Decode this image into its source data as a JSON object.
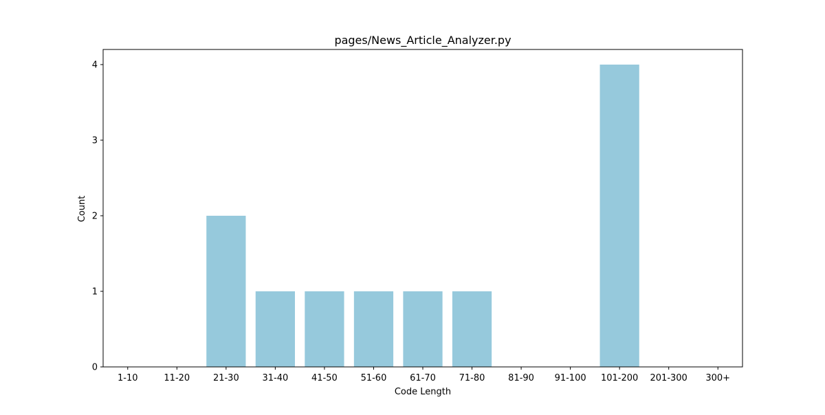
{
  "chart_data": {
    "type": "bar",
    "title": "pages/News_Article_Analyzer.py",
    "xlabel": "Code Length",
    "ylabel": "Count",
    "categories": [
      "1-10",
      "11-20",
      "21-30",
      "31-40",
      "41-50",
      "51-60",
      "61-70",
      "71-80",
      "81-90",
      "91-100",
      "101-200",
      "201-300",
      "300+"
    ],
    "values": [
      0,
      0,
      2,
      1,
      1,
      1,
      1,
      1,
      0,
      0,
      4,
      0,
      0
    ],
    "ylim": [
      0,
      4.2
    ],
    "yticks": [
      0,
      1,
      2,
      3,
      4
    ],
    "grid": false,
    "bar_color": "#96c9dc"
  }
}
